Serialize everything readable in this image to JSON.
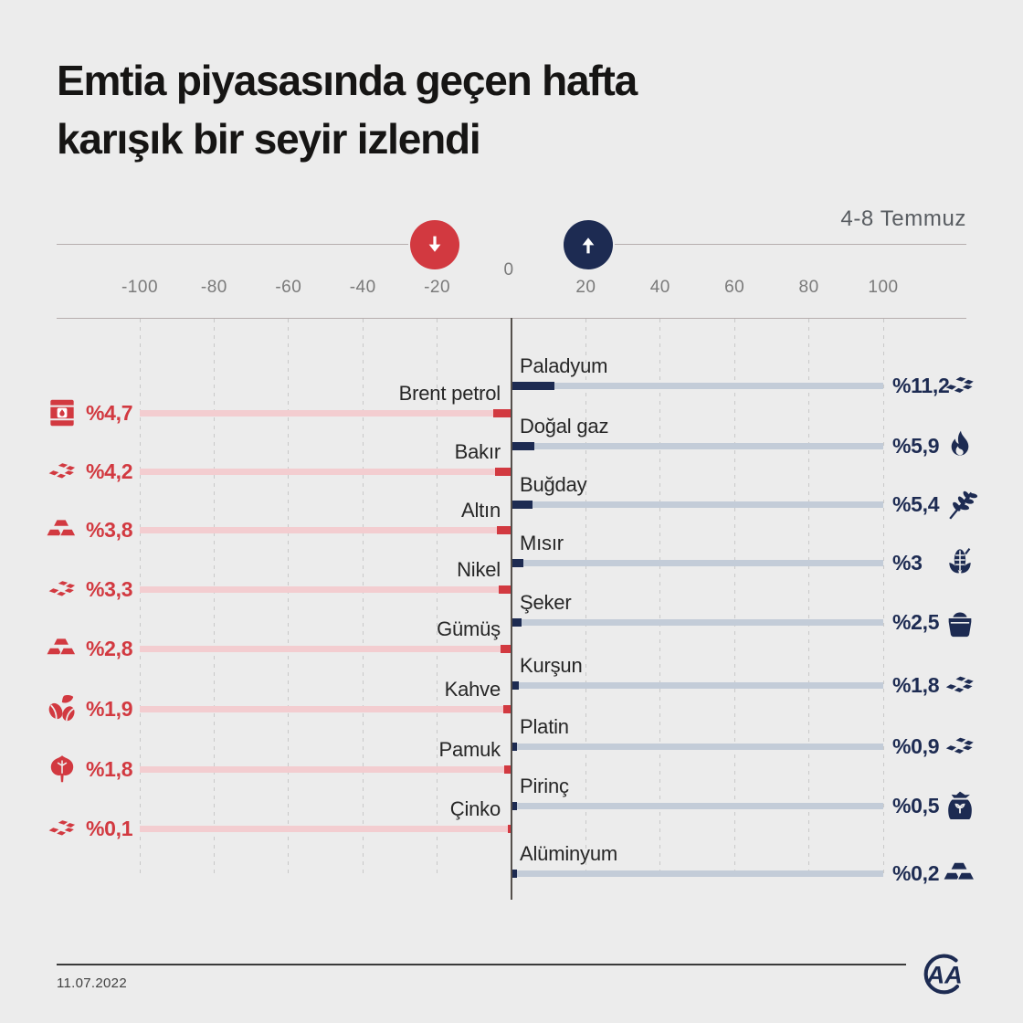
{
  "title": "Emtia piyasasında geçen hafta karışık bir seyir izlendi",
  "title_lines": [
    "Emtia piyasasında geçen hafta",
    "karışık bir seyir izlendi"
  ],
  "header": {
    "period": "4-8 Temmuz",
    "down_arrow_icon": "down-arrow-icon",
    "up_arrow_icon": "up-arrow-icon"
  },
  "axis": {
    "zero_label": "0",
    "tick_values": [
      -100,
      -80,
      -60,
      -40,
      -20,
      20,
      40,
      60,
      80,
      100
    ],
    "tick_labels": [
      "-100",
      "-80",
      "-60",
      "-40",
      "-20",
      "20",
      "40",
      "60",
      "80",
      "100"
    ]
  },
  "colors": {
    "background": "#ececec",
    "down": "#d23940",
    "down_track": "#f3cdd0",
    "up": "#1d2b52",
    "up_track": "#c3ccd8"
  },
  "chart_data": {
    "type": "bar",
    "variant": "diverging-horizontal",
    "unit": "% haftalık değişim",
    "x_range": [
      -100,
      100
    ],
    "tick_step": 20,
    "grid": "dashed-vertical",
    "down": [
      {
        "label": "Brent petrol",
        "value": 4.7,
        "display": "%4,7",
        "icon": "oil-barrel-icon"
      },
      {
        "label": "Bakır",
        "value": 4.2,
        "display": "%4,2",
        "icon": "nuggets-icon"
      },
      {
        "label": "Altın",
        "value": 3.8,
        "display": "%3,8",
        "icon": "ingots-icon"
      },
      {
        "label": "Nikel",
        "value": 3.3,
        "display": "%3,3",
        "icon": "nuggets-icon"
      },
      {
        "label": "Gümüş",
        "value": 2.8,
        "display": "%2,8",
        "icon": "ingots-icon"
      },
      {
        "label": "Kahve",
        "value": 1.9,
        "display": "%1,9",
        "icon": "cocoa-beans-icon"
      },
      {
        "label": "Pamuk",
        "value": 1.8,
        "display": "%1,8",
        "icon": "cotton-leaf-icon"
      },
      {
        "label": "Çinko",
        "value": 0.1,
        "display": "%0,1",
        "icon": "nuggets-icon"
      }
    ],
    "up": [
      {
        "label": "Paladyum",
        "value": 11.2,
        "display": "%11,2",
        "icon": "nuggets-icon"
      },
      {
        "label": "Doğal gaz",
        "value": 5.9,
        "display": "%5,9",
        "icon": "flame-icon"
      },
      {
        "label": "Buğday",
        "value": 5.4,
        "display": "%5,4",
        "icon": "wheat-icon"
      },
      {
        "label": "Mısır",
        "value": 3,
        "display": "%3",
        "icon": "corn-icon"
      },
      {
        "label": "Şeker",
        "value": 2.5,
        "display": "%2,5",
        "icon": "sugar-pot-icon"
      },
      {
        "label": "Kurşun",
        "value": 1.8,
        "display": "%1,8",
        "icon": "nuggets-icon"
      },
      {
        "label": "Platin",
        "value": 0.9,
        "display": "%0,9",
        "icon": "nuggets-icon"
      },
      {
        "label": "Pirinç",
        "value": 0.5,
        "display": "%0,5",
        "icon": "rice-sack-icon"
      },
      {
        "label": "Alüminyum",
        "value": 0.2,
        "display": "%0,2",
        "icon": "ingots-icon"
      }
    ]
  },
  "footer": {
    "date": "11.07.2022",
    "logo_text": "AA",
    "logo_icon": "anadolu-agency-logo-icon"
  }
}
